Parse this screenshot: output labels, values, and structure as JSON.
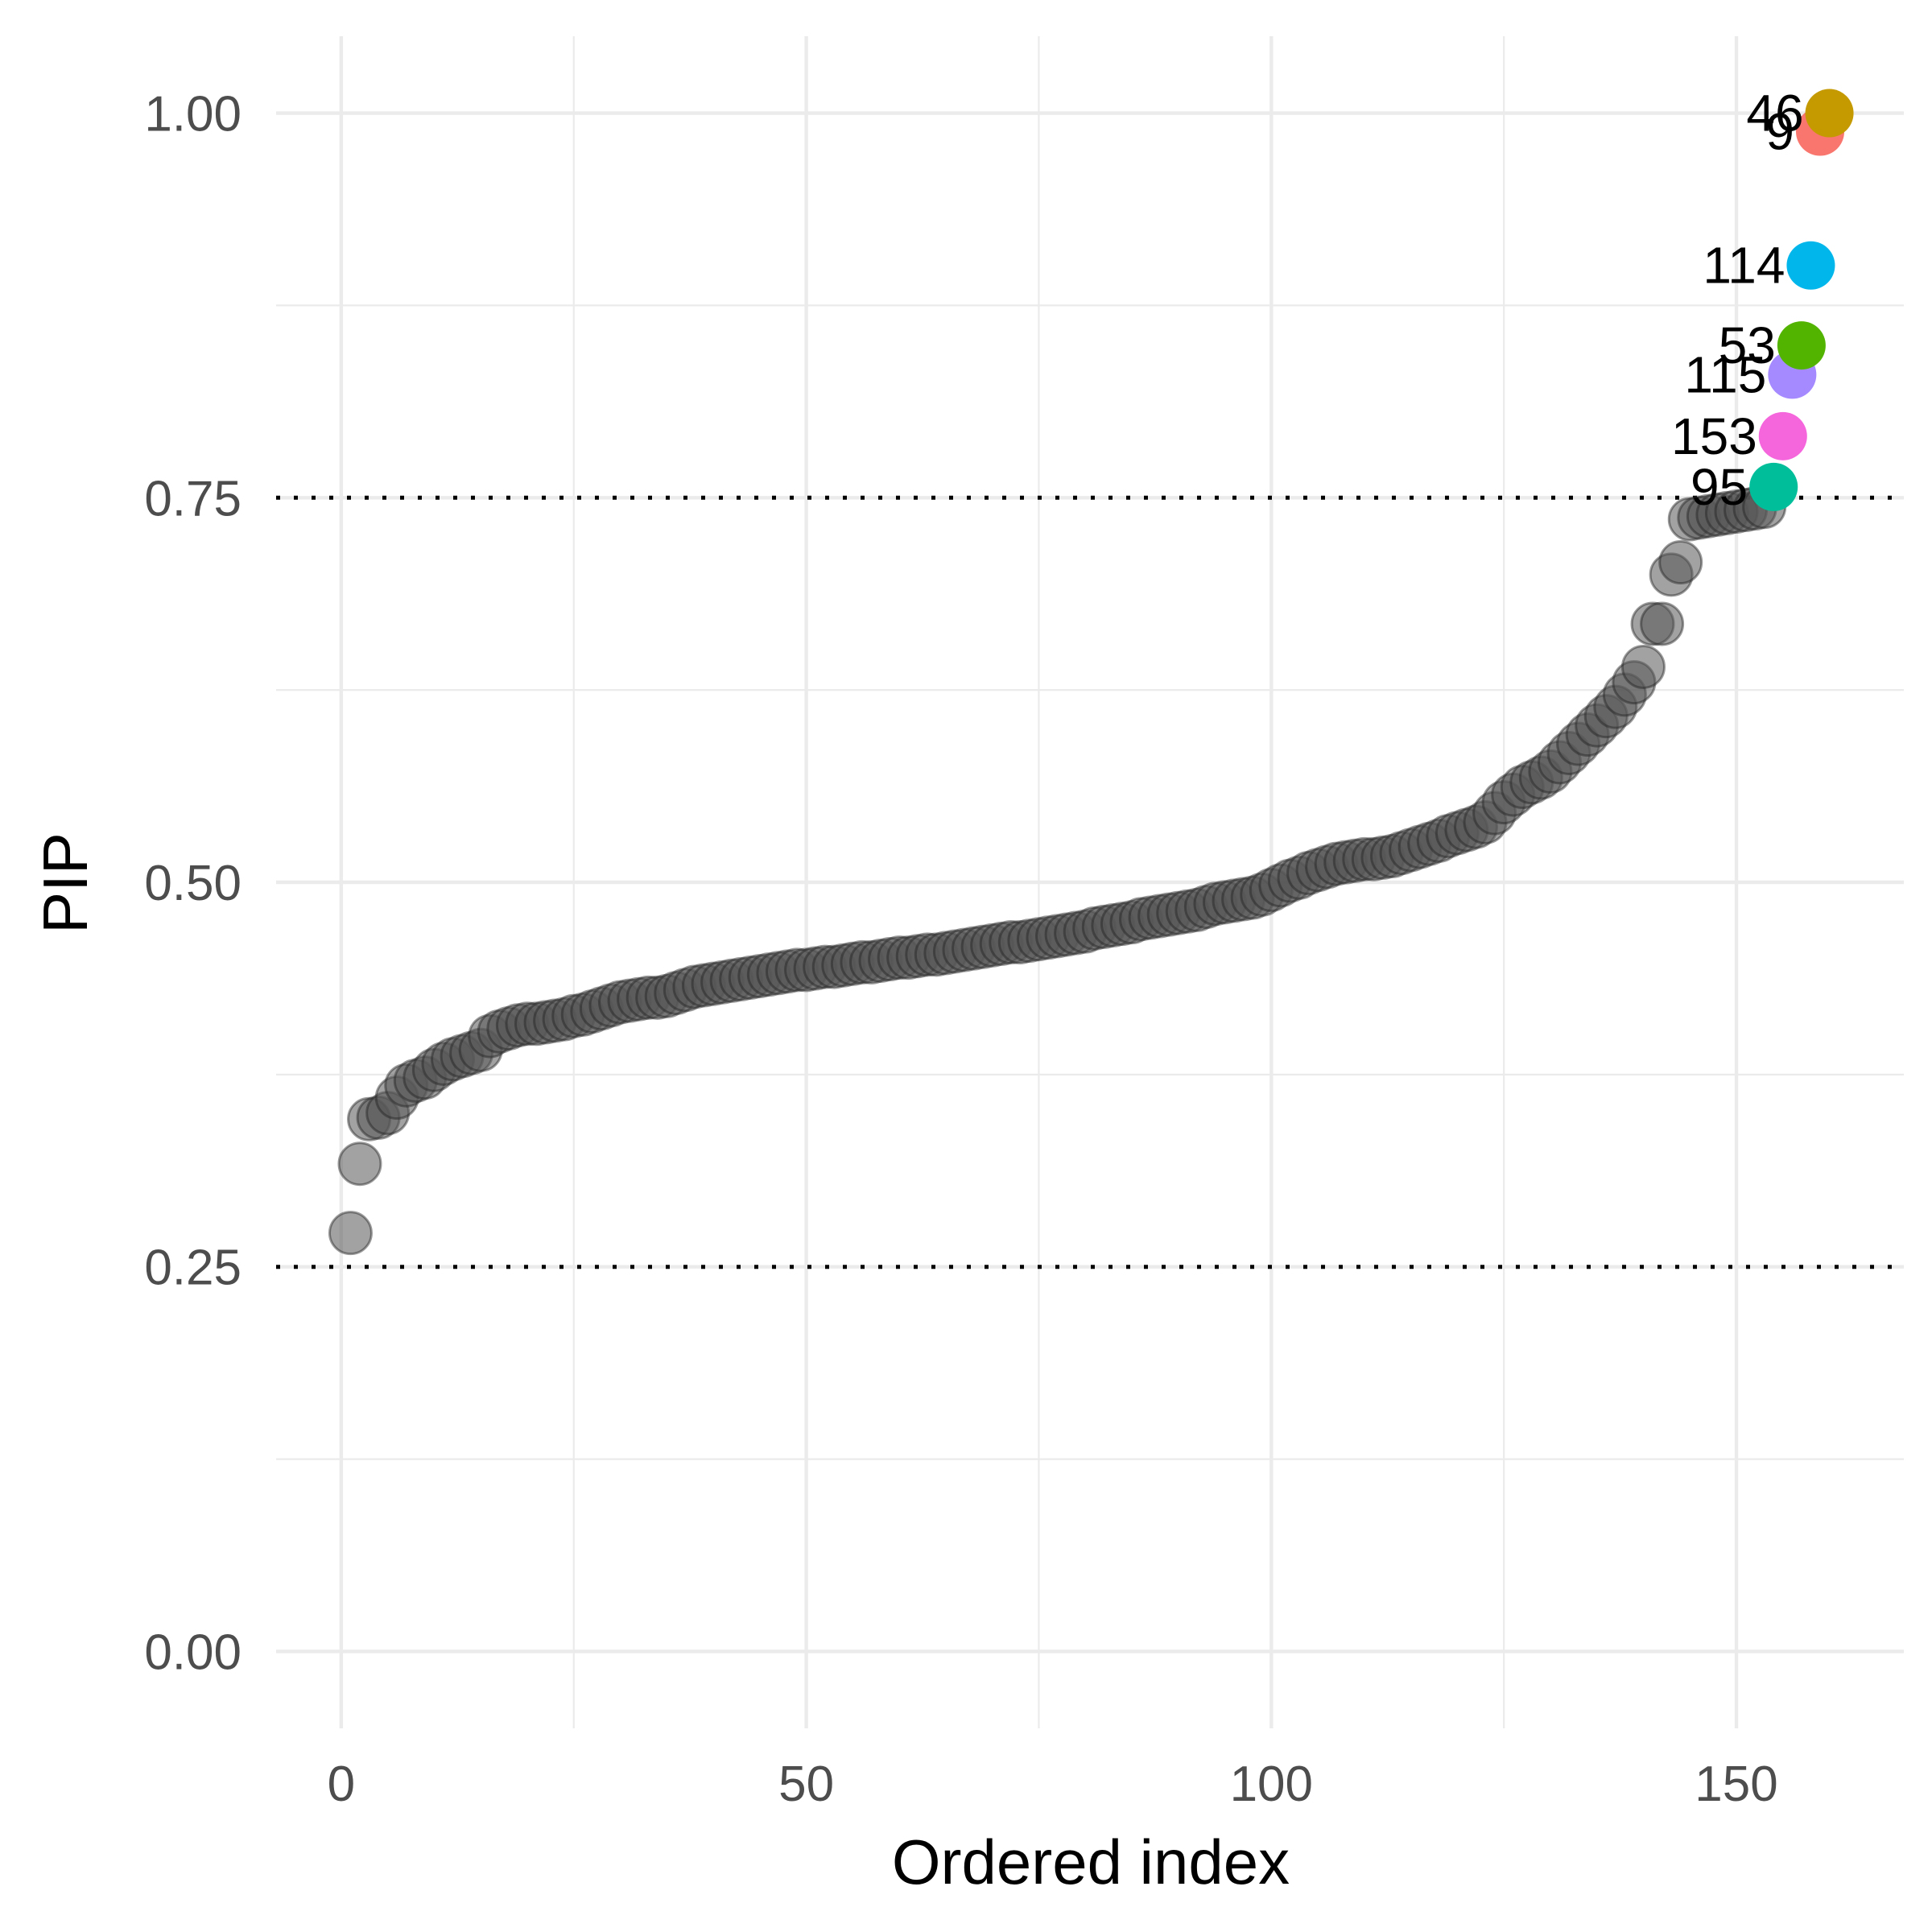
{
  "chart_data": {
    "type": "scatter",
    "title": "",
    "xlabel": "Ordered index",
    "ylabel": "PIP",
    "xlim": [
      -7,
      168
    ],
    "ylim": [
      -0.05,
      1.05
    ],
    "x_ticks": [
      0,
      50,
      100,
      150
    ],
    "x_tick_labels": [
      "0",
      "50",
      "100",
      "150"
    ],
    "y_ticks": [
      0.0,
      0.25,
      0.5,
      0.75,
      1.0
    ],
    "y_tick_labels": [
      "0.00",
      "0.25",
      "0.50",
      "0.75",
      "1.00"
    ],
    "grid": true,
    "legend": "none",
    "reference_lines": [
      {
        "axis": "y",
        "value": 0.25,
        "style": "dotted"
      },
      {
        "axis": "y",
        "value": 0.75,
        "style": "dotted"
      }
    ],
    "background_series": {
      "color": "#555555",
      "x": [
        1,
        2,
        3,
        4,
        5,
        6,
        7,
        8,
        9,
        10,
        11,
        12,
        13,
        14,
        15,
        16,
        17,
        18,
        19,
        20,
        21,
        22,
        23,
        24,
        25,
        26,
        27,
        28,
        29,
        30,
        31,
        32,
        33,
        34,
        35,
        36,
        37,
        38,
        39,
        40,
        41,
        42,
        43,
        44,
        45,
        46,
        47,
        48,
        49,
        50,
        51,
        52,
        53,
        54,
        55,
        56,
        57,
        58,
        59,
        60,
        61,
        62,
        63,
        64,
        65,
        66,
        67,
        68,
        69,
        70,
        71,
        72,
        73,
        74,
        75,
        76,
        77,
        78,
        79,
        80,
        81,
        82,
        83,
        84,
        85,
        86,
        87,
        88,
        89,
        90,
        91,
        92,
        93,
        94,
        95,
        96,
        97,
        98,
        99,
        100,
        101,
        102,
        103,
        104,
        105,
        106,
        107,
        108,
        109,
        110,
        111,
        112,
        113,
        114,
        115,
        116,
        117,
        118,
        119,
        120,
        121,
        122,
        123,
        124,
        125,
        126,
        127,
        128,
        129,
        130,
        131,
        132,
        133,
        134,
        135,
        136,
        137,
        138,
        139,
        140,
        141,
        142,
        143,
        144,
        145,
        146,
        147,
        148,
        149,
        150,
        151,
        152,
        153
      ],
      "y": [
        0.272,
        0.317,
        0.346,
        0.347,
        0.35,
        0.36,
        0.368,
        0.371,
        0.373,
        0.378,
        0.382,
        0.385,
        0.387,
        0.389,
        0.391,
        0.4,
        0.403,
        0.405,
        0.407,
        0.408,
        0.408,
        0.409,
        0.41,
        0.411,
        0.413,
        0.414,
        0.416,
        0.418,
        0.42,
        0.422,
        0.423,
        0.424,
        0.425,
        0.425,
        0.426,
        0.428,
        0.43,
        0.432,
        0.433,
        0.434,
        0.435,
        0.436,
        0.437,
        0.438,
        0.439,
        0.44,
        0.441,
        0.442,
        0.443,
        0.443,
        0.444,
        0.445,
        0.445,
        0.446,
        0.447,
        0.448,
        0.448,
        0.449,
        0.45,
        0.451,
        0.451,
        0.452,
        0.453,
        0.453,
        0.454,
        0.455,
        0.456,
        0.457,
        0.458,
        0.459,
        0.46,
        0.461,
        0.461,
        0.462,
        0.463,
        0.464,
        0.465,
        0.466,
        0.467,
        0.468,
        0.47,
        0.471,
        0.472,
        0.473,
        0.474,
        0.476,
        0.477,
        0.478,
        0.479,
        0.48,
        0.481,
        0.482,
        0.484,
        0.486,
        0.487,
        0.488,
        0.489,
        0.49,
        0.492,
        0.495,
        0.498,
        0.501,
        0.503,
        0.506,
        0.508,
        0.51,
        0.512,
        0.513,
        0.514,
        0.515,
        0.515,
        0.516,
        0.517,
        0.519,
        0.521,
        0.523,
        0.525,
        0.527,
        0.53,
        0.532,
        0.534,
        0.536,
        0.539,
        0.545,
        0.552,
        0.557,
        0.562,
        0.565,
        0.568,
        0.572,
        0.578,
        0.584,
        0.59,
        0.596,
        0.602,
        0.608,
        0.614,
        0.622,
        0.63,
        0.64,
        0.668,
        0.668,
        0.7,
        0.708,
        0.736,
        0.737,
        0.738,
        0.739,
        0.74,
        0.741,
        0.742,
        0.743,
        0.744
      ]
    },
    "highlighted_points": [
      {
        "label": "95",
        "x": 154,
        "y": 0.757,
        "color": "#00BE9A"
      },
      {
        "label": "153",
        "x": 155,
        "y": 0.79,
        "color": "#F565DC"
      },
      {
        "label": "115",
        "x": 156,
        "y": 0.83,
        "color": "#A58AFF"
      },
      {
        "label": "53",
        "x": 157,
        "y": 0.849,
        "color": "#53B400"
      },
      {
        "label": "114",
        "x": 158,
        "y": 0.901,
        "color": "#00B6EB"
      },
      {
        "label": "9",
        "x": 159,
        "y": 0.988,
        "color": "#F8766D"
      },
      {
        "label": "46",
        "x": 160,
        "y": 1.0,
        "color": "#C49A00"
      }
    ]
  }
}
